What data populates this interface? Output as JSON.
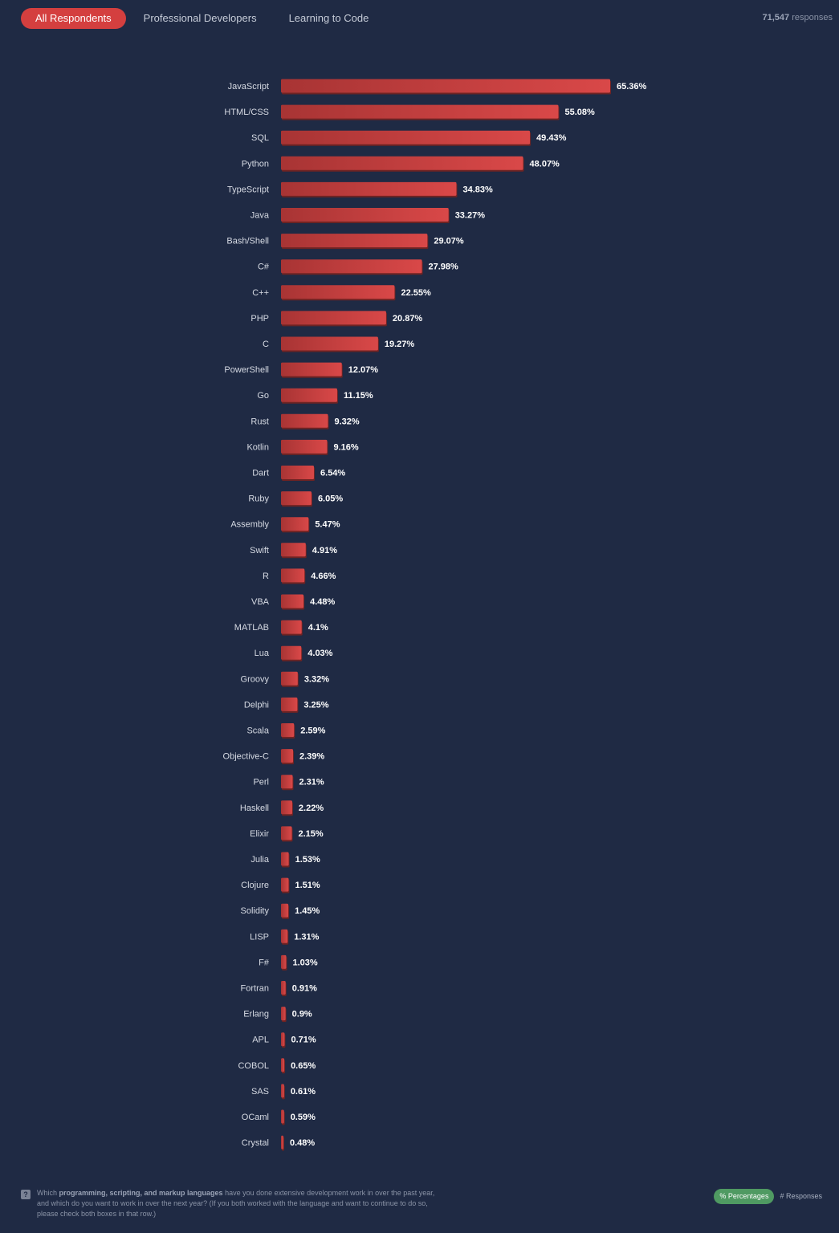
{
  "tabs": [
    {
      "label": "All Respondents",
      "active": true
    },
    {
      "label": "Professional Developers",
      "active": false
    },
    {
      "label": "Learning to Code",
      "active": false
    }
  ],
  "responses": {
    "count": "71,547",
    "suffix": "responses"
  },
  "colors": {
    "bar": "#d94848",
    "bar_dark": "#a83434",
    "bar_shadow": "#6e2323"
  },
  "chart_data": {
    "type": "bar",
    "orientation": "horizontal",
    "categories": [
      "JavaScript",
      "HTML/CSS",
      "SQL",
      "Python",
      "TypeScript",
      "Java",
      "Bash/Shell",
      "C#",
      "C++",
      "PHP",
      "C",
      "PowerShell",
      "Go",
      "Rust",
      "Kotlin",
      "Dart",
      "Ruby",
      "Assembly",
      "Swift",
      "R",
      "VBA",
      "MATLAB",
      "Lua",
      "Groovy",
      "Delphi",
      "Scala",
      "Objective-C",
      "Perl",
      "Haskell",
      "Elixir",
      "Julia",
      "Clojure",
      "Solidity",
      "LISP",
      "F#",
      "Fortran",
      "Erlang",
      "APL",
      "COBOL",
      "SAS",
      "OCaml",
      "Crystal"
    ],
    "values": [
      65.36,
      55.08,
      49.43,
      48.07,
      34.83,
      33.27,
      29.07,
      27.98,
      22.55,
      20.87,
      19.27,
      12.07,
      11.15,
      9.32,
      9.16,
      6.54,
      6.05,
      5.47,
      4.91,
      4.66,
      4.48,
      4.1,
      4.03,
      3.32,
      3.25,
      2.59,
      2.39,
      2.31,
      2.22,
      2.15,
      1.53,
      1.51,
      1.45,
      1.31,
      1.03,
      0.91,
      0.9,
      0.71,
      0.65,
      0.61,
      0.59,
      0.48
    ],
    "value_labels": [
      "65.36%",
      "55.08%",
      "49.43%",
      "48.07%",
      "34.83%",
      "33.27%",
      "29.07%",
      "27.98%",
      "22.55%",
      "20.87%",
      "19.27%",
      "12.07%",
      "11.15%",
      "9.32%",
      "9.16%",
      "6.54%",
      "6.05%",
      "5.47%",
      "4.91%",
      "4.66%",
      "4.48%",
      "4.1%",
      "4.03%",
      "3.32%",
      "3.25%",
      "2.59%",
      "2.39%",
      "2.31%",
      "2.22%",
      "2.15%",
      "1.53%",
      "1.51%",
      "1.45%",
      "1.31%",
      "1.03%",
      "0.91%",
      "0.9%",
      "0.71%",
      "0.65%",
      "0.61%",
      "0.59%",
      "0.48%"
    ],
    "unit": "%",
    "grid": false
  },
  "footer": {
    "question_pre": "Which ",
    "question_bold": "programming, scripting, and markup languages",
    "question_post": " have you done extensive development work in over the past year, and which do you want to work in over the next year? (If you both worked with the language and want to continue to do so, please check both boxes in that row.)",
    "help_icon": "?"
  },
  "toggle": {
    "percentages": "% Percentages",
    "responses": "# Responses"
  }
}
